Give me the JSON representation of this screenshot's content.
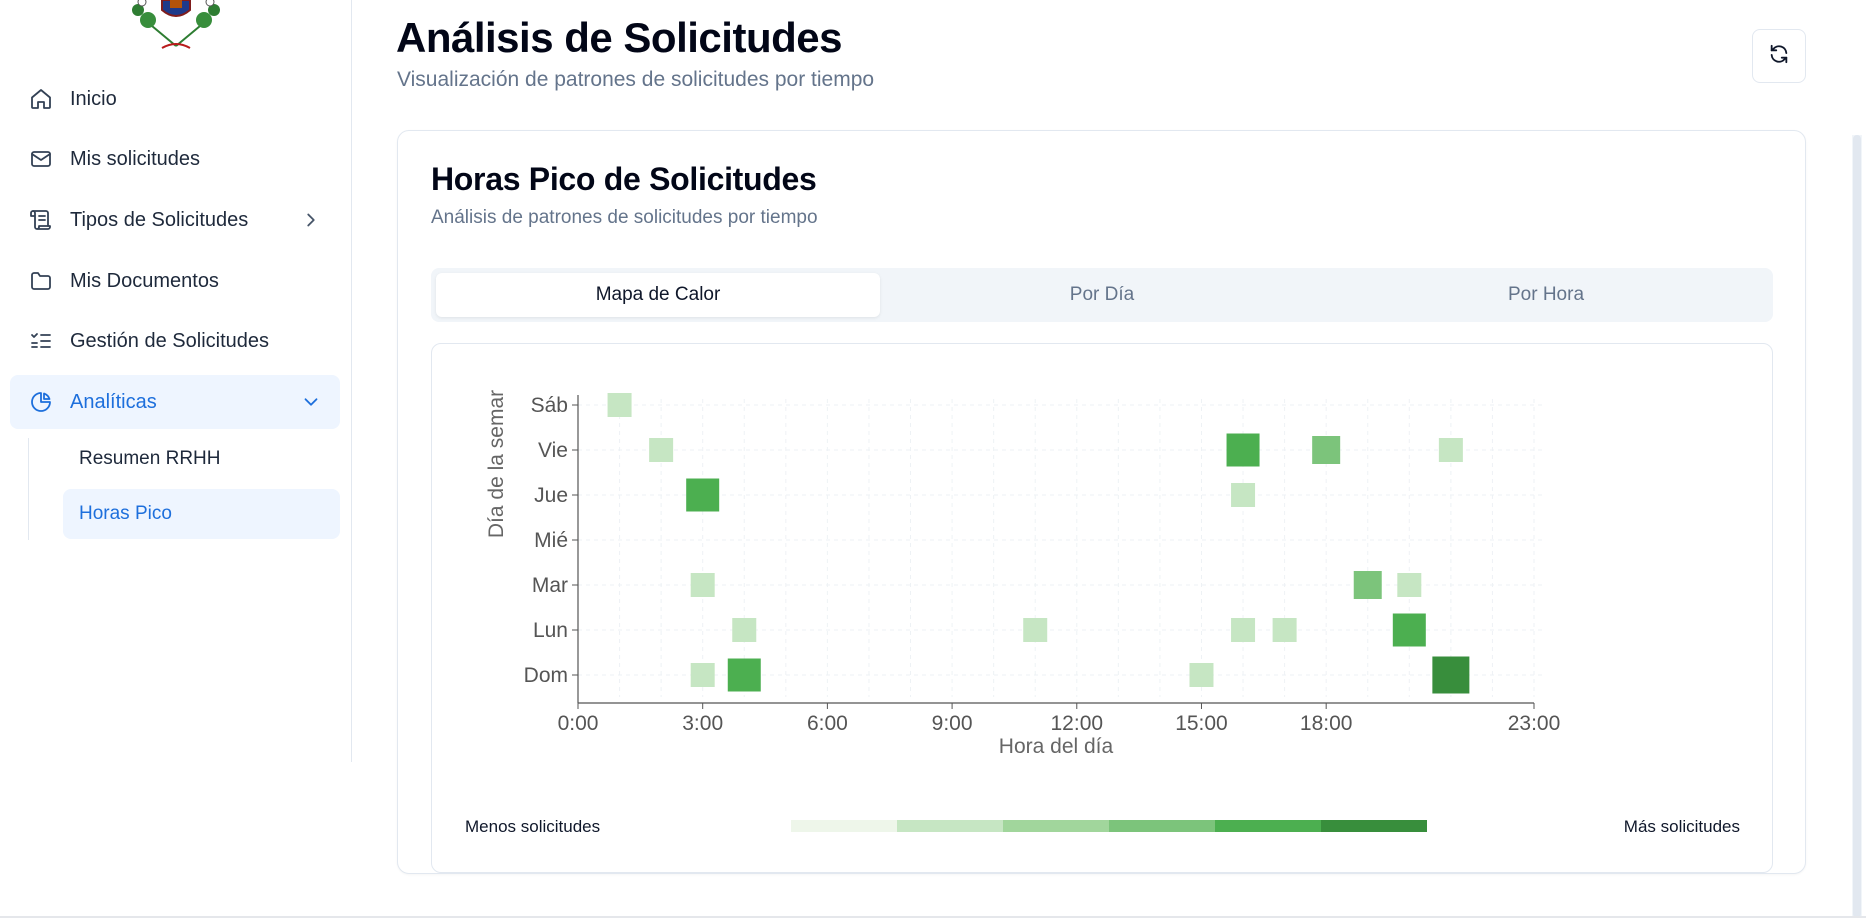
{
  "sidebar": {
    "items": [
      {
        "label": "Inicio",
        "icon": "home-icon"
      },
      {
        "label": "Mis solicitudes",
        "icon": "mail-icon"
      },
      {
        "label": "Tipos de Solicitudes",
        "icon": "scroll-icon"
      },
      {
        "label": "Mis Documentos",
        "icon": "folder-icon"
      },
      {
        "label": "Gestión de Solicitudes",
        "icon": "list-checks-icon"
      },
      {
        "label": "Analíticas",
        "icon": "pie-chart-icon"
      }
    ],
    "subitems": [
      {
        "label": "Resumen RRHH"
      },
      {
        "label": "Horas Pico"
      }
    ],
    "active_color": "#1d6fdc"
  },
  "header": {
    "title": "Análisis de Solicitudes",
    "subtitle": "Visualización de patrones de solicitudes por tiempo"
  },
  "card": {
    "title": "Horas Pico de Solicitudes",
    "subtitle": "Análisis de patrones de solicitudes por tiempo",
    "tabs": [
      {
        "label": "Mapa de Calor"
      },
      {
        "label": "Por Día"
      },
      {
        "label": "Por Hora"
      }
    ]
  },
  "legend": {
    "less": "Menos solicitudes",
    "more": "Más solicitudes",
    "colors": [
      "#eef6ea",
      "#c6e6c3",
      "#a1d69c",
      "#7cc47b",
      "#4caf50",
      "#388e3c"
    ]
  },
  "chart_data": {
    "type": "heatmap",
    "xlabel": "Hora del día",
    "ylabel": "Día de la semar",
    "x_ticks": [
      "0:00",
      "3:00",
      "6:00",
      "9:00",
      "12:00",
      "15:00",
      "18:00",
      "23:00"
    ],
    "x_tick_values": [
      0,
      3,
      6,
      9,
      12,
      15,
      18,
      23
    ],
    "xlim": [
      0,
      23
    ],
    "y_categories": [
      "Dom",
      "Lun",
      "Mar",
      "Mié",
      "Jue",
      "Vie",
      "Sáb"
    ],
    "grid": true,
    "cells": [
      {
        "day": "Sáb",
        "hour": 1,
        "level": 1
      },
      {
        "day": "Vie",
        "hour": 2,
        "level": 1
      },
      {
        "day": "Vie",
        "hour": 16,
        "level": 4
      },
      {
        "day": "Vie",
        "hour": 18,
        "level": 3
      },
      {
        "day": "Vie",
        "hour": 21,
        "level": 1
      },
      {
        "day": "Jue",
        "hour": 3,
        "level": 4
      },
      {
        "day": "Jue",
        "hour": 16,
        "level": 1
      },
      {
        "day": "Mar",
        "hour": 3,
        "level": 1
      },
      {
        "day": "Mar",
        "hour": 19,
        "level": 3
      },
      {
        "day": "Mar",
        "hour": 20,
        "level": 1
      },
      {
        "day": "Lun",
        "hour": 4,
        "level": 1
      },
      {
        "day": "Lun",
        "hour": 11,
        "level": 1
      },
      {
        "day": "Lun",
        "hour": 16,
        "level": 1
      },
      {
        "day": "Lun",
        "hour": 17,
        "level": 1
      },
      {
        "day": "Lun",
        "hour": 20,
        "level": 4
      },
      {
        "day": "Dom",
        "hour": 3,
        "level": 1
      },
      {
        "day": "Dom",
        "hour": 4,
        "level": 4
      },
      {
        "day": "Dom",
        "hour": 15,
        "level": 1
      },
      {
        "day": "Dom",
        "hour": 21,
        "level": 5
      }
    ]
  }
}
